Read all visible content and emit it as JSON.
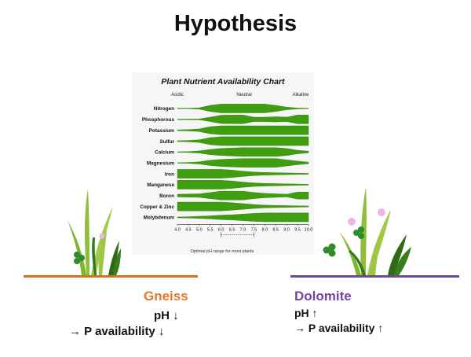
{
  "slide": {
    "title": "Hypothesis"
  },
  "chart": {
    "title": "Plant Nutrient Availability Chart",
    "acidic_label": "Acidic",
    "neutral_label": "Neutral",
    "alkaline_label": "Alkaline",
    "optimal_label": "Optimal pH range for most plants"
  },
  "chart_data": {
    "type": "band",
    "title": "Plant Nutrient Availability Chart",
    "xlim": [
      4.0,
      10.0
    ],
    "x_ticks": [
      "4.0",
      "4.5",
      "5.0",
      "5.5",
      "6.0",
      "6.5",
      "7.0",
      "7.5",
      "8.0",
      "8.5",
      "9.0",
      "9.5",
      "10.0"
    ],
    "optimal_range": [
      6.0,
      7.5
    ],
    "series": [
      {
        "name": "Nitrogen",
        "profile": [
          [
            4.0,
            0.05
          ],
          [
            4.5,
            0.05
          ],
          [
            5.0,
            0.15
          ],
          [
            5.5,
            0.7
          ],
          [
            6.0,
            1.0
          ],
          [
            8.0,
            1.0
          ],
          [
            8.5,
            0.7
          ],
          [
            9.0,
            0.3
          ],
          [
            9.5,
            0.1
          ],
          [
            10.0,
            0.05
          ]
        ]
      },
      {
        "name": "Phosphorous",
        "profile": [
          [
            4.0,
            0.05
          ],
          [
            5.0,
            0.1
          ],
          [
            5.5,
            0.5
          ],
          [
            6.0,
            0.95
          ],
          [
            7.0,
            1.0
          ],
          [
            7.5,
            0.5
          ],
          [
            8.0,
            0.5
          ],
          [
            8.5,
            0.6
          ],
          [
            9.0,
            0.5
          ],
          [
            9.5,
            1.0
          ],
          [
            10.0,
            1.0
          ]
        ]
      },
      {
        "name": "Potassium",
        "profile": [
          [
            4.0,
            0.1
          ],
          [
            4.5,
            0.15
          ],
          [
            5.0,
            0.3
          ],
          [
            5.5,
            0.8
          ],
          [
            6.0,
            1.0
          ],
          [
            10.0,
            1.0
          ]
        ]
      },
      {
        "name": "Sulfur",
        "profile": [
          [
            4.0,
            0.1
          ],
          [
            4.5,
            0.15
          ],
          [
            5.0,
            0.3
          ],
          [
            5.5,
            0.8
          ],
          [
            6.0,
            1.0
          ],
          [
            10.0,
            1.0
          ]
        ]
      },
      {
        "name": "Calcium",
        "profile": [
          [
            4.0,
            0.05
          ],
          [
            4.5,
            0.1
          ],
          [
            5.0,
            0.25
          ],
          [
            5.5,
            0.6
          ],
          [
            6.0,
            0.8
          ],
          [
            7.0,
            1.0
          ],
          [
            8.5,
            1.0
          ],
          [
            9.0,
            0.8
          ],
          [
            9.5,
            0.4
          ],
          [
            10.0,
            0.2
          ]
        ]
      },
      {
        "name": "Magnesium",
        "profile": [
          [
            4.0,
            0.05
          ],
          [
            4.5,
            0.1
          ],
          [
            5.0,
            0.25
          ],
          [
            5.5,
            0.6
          ],
          [
            6.0,
            0.8
          ],
          [
            7.0,
            1.0
          ],
          [
            8.5,
            1.0
          ],
          [
            9.0,
            0.7
          ],
          [
            9.5,
            0.4
          ],
          [
            10.0,
            0.2
          ]
        ]
      },
      {
        "name": "Iron",
        "profile": [
          [
            4.0,
            1.0
          ],
          [
            6.0,
            1.0
          ],
          [
            6.5,
            0.85
          ],
          [
            7.0,
            0.6
          ],
          [
            7.5,
            0.4
          ],
          [
            8.0,
            0.3
          ],
          [
            9.0,
            0.2
          ],
          [
            10.0,
            0.1
          ]
        ]
      },
      {
        "name": "Manganese",
        "profile": [
          [
            4.0,
            1.0
          ],
          [
            6.0,
            1.0
          ],
          [
            6.5,
            0.85
          ],
          [
            7.0,
            0.6
          ],
          [
            7.5,
            0.4
          ],
          [
            8.0,
            0.3
          ],
          [
            9.0,
            0.2
          ],
          [
            10.0,
            0.1
          ]
        ]
      },
      {
        "name": "Boron",
        "profile": [
          [
            4.0,
            0.3
          ],
          [
            5.0,
            0.4
          ],
          [
            5.5,
            0.7
          ],
          [
            6.0,
            1.0
          ],
          [
            7.0,
            1.0
          ],
          [
            7.5,
            0.7
          ],
          [
            8.0,
            0.5
          ],
          [
            9.0,
            0.3
          ],
          [
            9.5,
            0.8
          ],
          [
            10.0,
            0.8
          ]
        ]
      },
      {
        "name": "Copper & Zinc",
        "profile": [
          [
            4.0,
            1.0
          ],
          [
            6.0,
            1.0
          ],
          [
            6.5,
            0.85
          ],
          [
            7.0,
            0.65
          ],
          [
            7.5,
            0.45
          ],
          [
            8.0,
            0.3
          ],
          [
            9.0,
            0.2
          ],
          [
            10.0,
            0.1
          ]
        ]
      },
      {
        "name": "Molybdenum",
        "profile": [
          [
            4.0,
            0.1
          ],
          [
            4.5,
            0.15
          ],
          [
            5.0,
            0.25
          ],
          [
            5.5,
            0.35
          ],
          [
            6.0,
            0.5
          ],
          [
            6.5,
            0.6
          ],
          [
            7.0,
            0.75
          ],
          [
            7.5,
            0.9
          ],
          [
            8.0,
            1.0
          ],
          [
            10.0,
            1.0
          ]
        ]
      }
    ]
  },
  "captions": {
    "left": {
      "head": "Gneiss",
      "ph": "pH ↓",
      "p": "→ P availability ↓"
    },
    "right": {
      "head": "Dolomite",
      "ph": "pH ↑",
      "p": "→ P availability ↑"
    }
  },
  "colors": {
    "band": "#3f9e0f",
    "band_edge": "#2e7a08",
    "gneiss": "#e2782c",
    "dolomite": "#7443a8"
  }
}
